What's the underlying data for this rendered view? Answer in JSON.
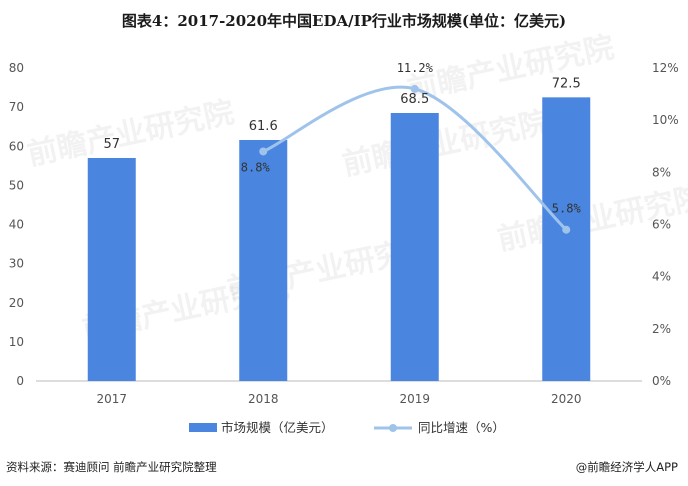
{
  "title": "图表4：2017-2020年中国EDA/IP行业市场规模(单位：亿美元)",
  "source": "资料来源：赛迪顾问 前瞻产业研究院整理",
  "brand": "@前瞻经济学人APP",
  "watermark": "前瞻产业研究院",
  "colors": {
    "bar": "#4a86e0",
    "line": "#9fc3ea",
    "axis": "#bbbbbb"
  },
  "chart_data": {
    "type": "bar",
    "categories": [
      "2017",
      "2018",
      "2019",
      "2020"
    ],
    "series": [
      {
        "name": "市场规模（亿美元）",
        "type": "bar",
        "axis": "left",
        "values": [
          57,
          61.6,
          68.5,
          72.5
        ],
        "labels": [
          "57",
          "61.6",
          "68.5",
          "72.5"
        ]
      },
      {
        "name": "同比增速（%）",
        "type": "line",
        "axis": "right",
        "smooth": true,
        "values": [
          null,
          8.8,
          11.2,
          5.8
        ],
        "labels": [
          "",
          "8.8%",
          "11.2%",
          "5.8%"
        ]
      }
    ],
    "y_left": {
      "min": 0,
      "max": 80,
      "step": 10,
      "ticks": [
        "0",
        "10",
        "20",
        "30",
        "40",
        "50",
        "60",
        "70",
        "80"
      ]
    },
    "y_right": {
      "min": 0,
      "max": 12,
      "step": 2,
      "ticks": [
        "0%",
        "2%",
        "4%",
        "6%",
        "8%",
        "10%",
        "12%"
      ]
    },
    "legend_position": "bottom",
    "grid": false
  }
}
